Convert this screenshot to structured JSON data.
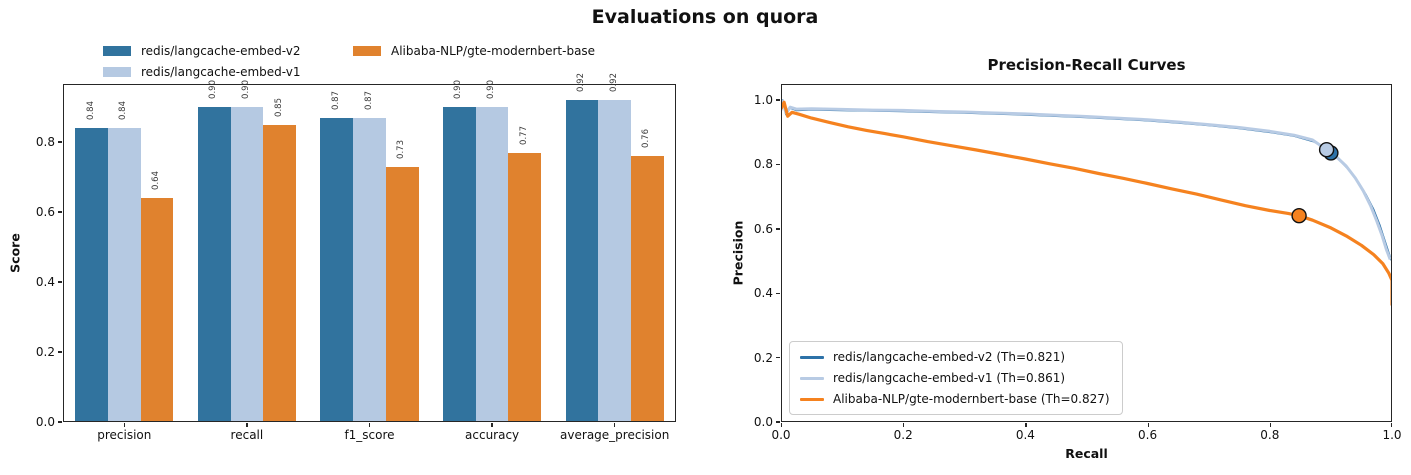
{
  "figure": {
    "title": "Evaluations on quora"
  },
  "chart_data": [
    {
      "type": "bar",
      "title": "",
      "xlabel": "",
      "ylabel": "Score",
      "categories": [
        "precision",
        "recall",
        "f1_score",
        "accuracy",
        "average_precision"
      ],
      "series": [
        {
          "name": "redis/langcache-embed-v2",
          "color": "#31739e",
          "values": [
            0.84,
            0.9,
            0.87,
            0.9,
            0.92
          ]
        },
        {
          "name": "redis/langcache-embed-v1",
          "color": "#b5c9e2",
          "values": [
            0.84,
            0.9,
            0.87,
            0.9,
            0.92
          ]
        },
        {
          "name": "Alibaba-NLP/gte-modernbert-base",
          "color": "#e0822e",
          "values": [
            0.64,
            0.85,
            0.73,
            0.77,
            0.76
          ]
        }
      ],
      "yticks": [
        0.0,
        0.2,
        0.4,
        0.6,
        0.8
      ],
      "ytick_labels": [
        "0.0",
        "0.2",
        "0.4",
        "0.6",
        "0.8"
      ],
      "ylim": [
        0,
        0.966
      ],
      "bar_value_labels_shown": true,
      "legend_position": "above-left, 2 columns, frameless"
    },
    {
      "type": "line",
      "title": "Precision-Recall Curves",
      "xlabel": "Recall",
      "ylabel": "Precision",
      "xticks": [
        0.0,
        0.2,
        0.4,
        0.6,
        0.8,
        1.0
      ],
      "xtick_labels": [
        "0.0",
        "0.2",
        "0.4",
        "0.6",
        "0.8",
        "1.0"
      ],
      "yticks": [
        0.0,
        0.2,
        0.4,
        0.6,
        0.8,
        1.0
      ],
      "ytick_labels": [
        "0.0",
        "0.2",
        "0.4",
        "0.6",
        "0.8",
        "1.0"
      ],
      "xlim": [
        0,
        1
      ],
      "ylim": [
        0,
        1.05
      ],
      "grid": false,
      "legend_position": "lower left, framed",
      "series": [
        {
          "label": "redis/langcache-embed-v2 (Th=0.821)",
          "color": "#2d72a8",
          "marker": {
            "x": 0.9,
            "y": 0.836,
            "fill": "#2d72a8"
          },
          "points": [
            [
              0,
              0.972
            ],
            [
              0.003,
              1.0
            ],
            [
              0.008,
              0.955
            ],
            [
              0.015,
              0.975
            ],
            [
              0.025,
              0.968
            ],
            [
              0.05,
              0.97
            ],
            [
              0.1,
              0.968
            ],
            [
              0.15,
              0.966
            ],
            [
              0.2,
              0.965
            ],
            [
              0.25,
              0.962
            ],
            [
              0.3,
              0.96
            ],
            [
              0.35,
              0.957
            ],
            [
              0.4,
              0.954
            ],
            [
              0.45,
              0.95
            ],
            [
              0.5,
              0.946
            ],
            [
              0.55,
              0.941
            ],
            [
              0.6,
              0.936
            ],
            [
              0.65,
              0.929
            ],
            [
              0.7,
              0.921
            ],
            [
              0.75,
              0.912
            ],
            [
              0.8,
              0.9
            ],
            [
              0.84,
              0.888
            ],
            [
              0.87,
              0.872
            ],
            [
              0.89,
              0.855
            ],
            [
              0.9,
              0.836
            ],
            [
              0.915,
              0.812
            ],
            [
              0.93,
              0.782
            ],
            [
              0.945,
              0.745
            ],
            [
              0.958,
              0.705
            ],
            [
              0.97,
              0.66
            ],
            [
              0.98,
              0.612
            ],
            [
              0.988,
              0.565
            ],
            [
              0.995,
              0.525
            ],
            [
              0.999,
              0.502
            ]
          ]
        },
        {
          "label": "redis/langcache-embed-v1 (Th=0.861)",
          "color": "#b8cbe4",
          "marker": {
            "x": 0.893,
            "y": 0.846,
            "fill": "#b8cbe4"
          },
          "points": [
            [
              0,
              0.968
            ],
            [
              0.003,
              0.996
            ],
            [
              0.008,
              0.96
            ],
            [
              0.015,
              0.978
            ],
            [
              0.025,
              0.972
            ],
            [
              0.05,
              0.973
            ],
            [
              0.1,
              0.971
            ],
            [
              0.15,
              0.969
            ],
            [
              0.2,
              0.968
            ],
            [
              0.25,
              0.965
            ],
            [
              0.3,
              0.963
            ],
            [
              0.35,
              0.96
            ],
            [
              0.4,
              0.957
            ],
            [
              0.45,
              0.953
            ],
            [
              0.5,
              0.949
            ],
            [
              0.55,
              0.944
            ],
            [
              0.6,
              0.939
            ],
            [
              0.65,
              0.932
            ],
            [
              0.7,
              0.924
            ],
            [
              0.75,
              0.915
            ],
            [
              0.8,
              0.903
            ],
            [
              0.84,
              0.891
            ],
            [
              0.87,
              0.876
            ],
            [
              0.893,
              0.846
            ],
            [
              0.91,
              0.822
            ],
            [
              0.925,
              0.795
            ],
            [
              0.94,
              0.758
            ],
            [
              0.953,
              0.718
            ],
            [
              0.965,
              0.672
            ],
            [
              0.975,
              0.625
            ],
            [
              0.984,
              0.578
            ],
            [
              0.991,
              0.535
            ],
            [
              0.997,
              0.505
            ]
          ]
        },
        {
          "label": "Alibaba-NLP/gte-modernbert-base (Th=0.827)",
          "color": "#f5821f",
          "marker": {
            "x": 0.848,
            "y": 0.641,
            "fill": "#f5821f"
          },
          "points": [
            [
              0,
              0.973
            ],
            [
              0.005,
              0.993
            ],
            [
              0.011,
              0.95
            ],
            [
              0.018,
              0.962
            ],
            [
              0.03,
              0.956
            ],
            [
              0.05,
              0.944
            ],
            [
              0.08,
              0.93
            ],
            [
              0.11,
              0.917
            ],
            [
              0.14,
              0.906
            ],
            [
              0.17,
              0.896
            ],
            [
              0.2,
              0.886
            ],
            [
              0.24,
              0.871
            ],
            [
              0.28,
              0.858
            ],
            [
              0.32,
              0.845
            ],
            [
              0.36,
              0.831
            ],
            [
              0.4,
              0.817
            ],
            [
              0.44,
              0.802
            ],
            [
              0.48,
              0.788
            ],
            [
              0.52,
              0.772
            ],
            [
              0.56,
              0.757
            ],
            [
              0.6,
              0.741
            ],
            [
              0.64,
              0.724
            ],
            [
              0.68,
              0.708
            ],
            [
              0.72,
              0.69
            ],
            [
              0.76,
              0.672
            ],
            [
              0.8,
              0.657
            ],
            [
              0.83,
              0.648
            ],
            [
              0.848,
              0.641
            ],
            [
              0.87,
              0.627
            ],
            [
              0.9,
              0.603
            ],
            [
              0.925,
              0.578
            ],
            [
              0.95,
              0.549
            ],
            [
              0.97,
              0.52
            ],
            [
              0.985,
              0.492
            ],
            [
              0.995,
              0.462
            ],
            [
              1.0,
              0.44
            ],
            [
              1.0,
              0.362
            ]
          ]
        }
      ]
    }
  ]
}
